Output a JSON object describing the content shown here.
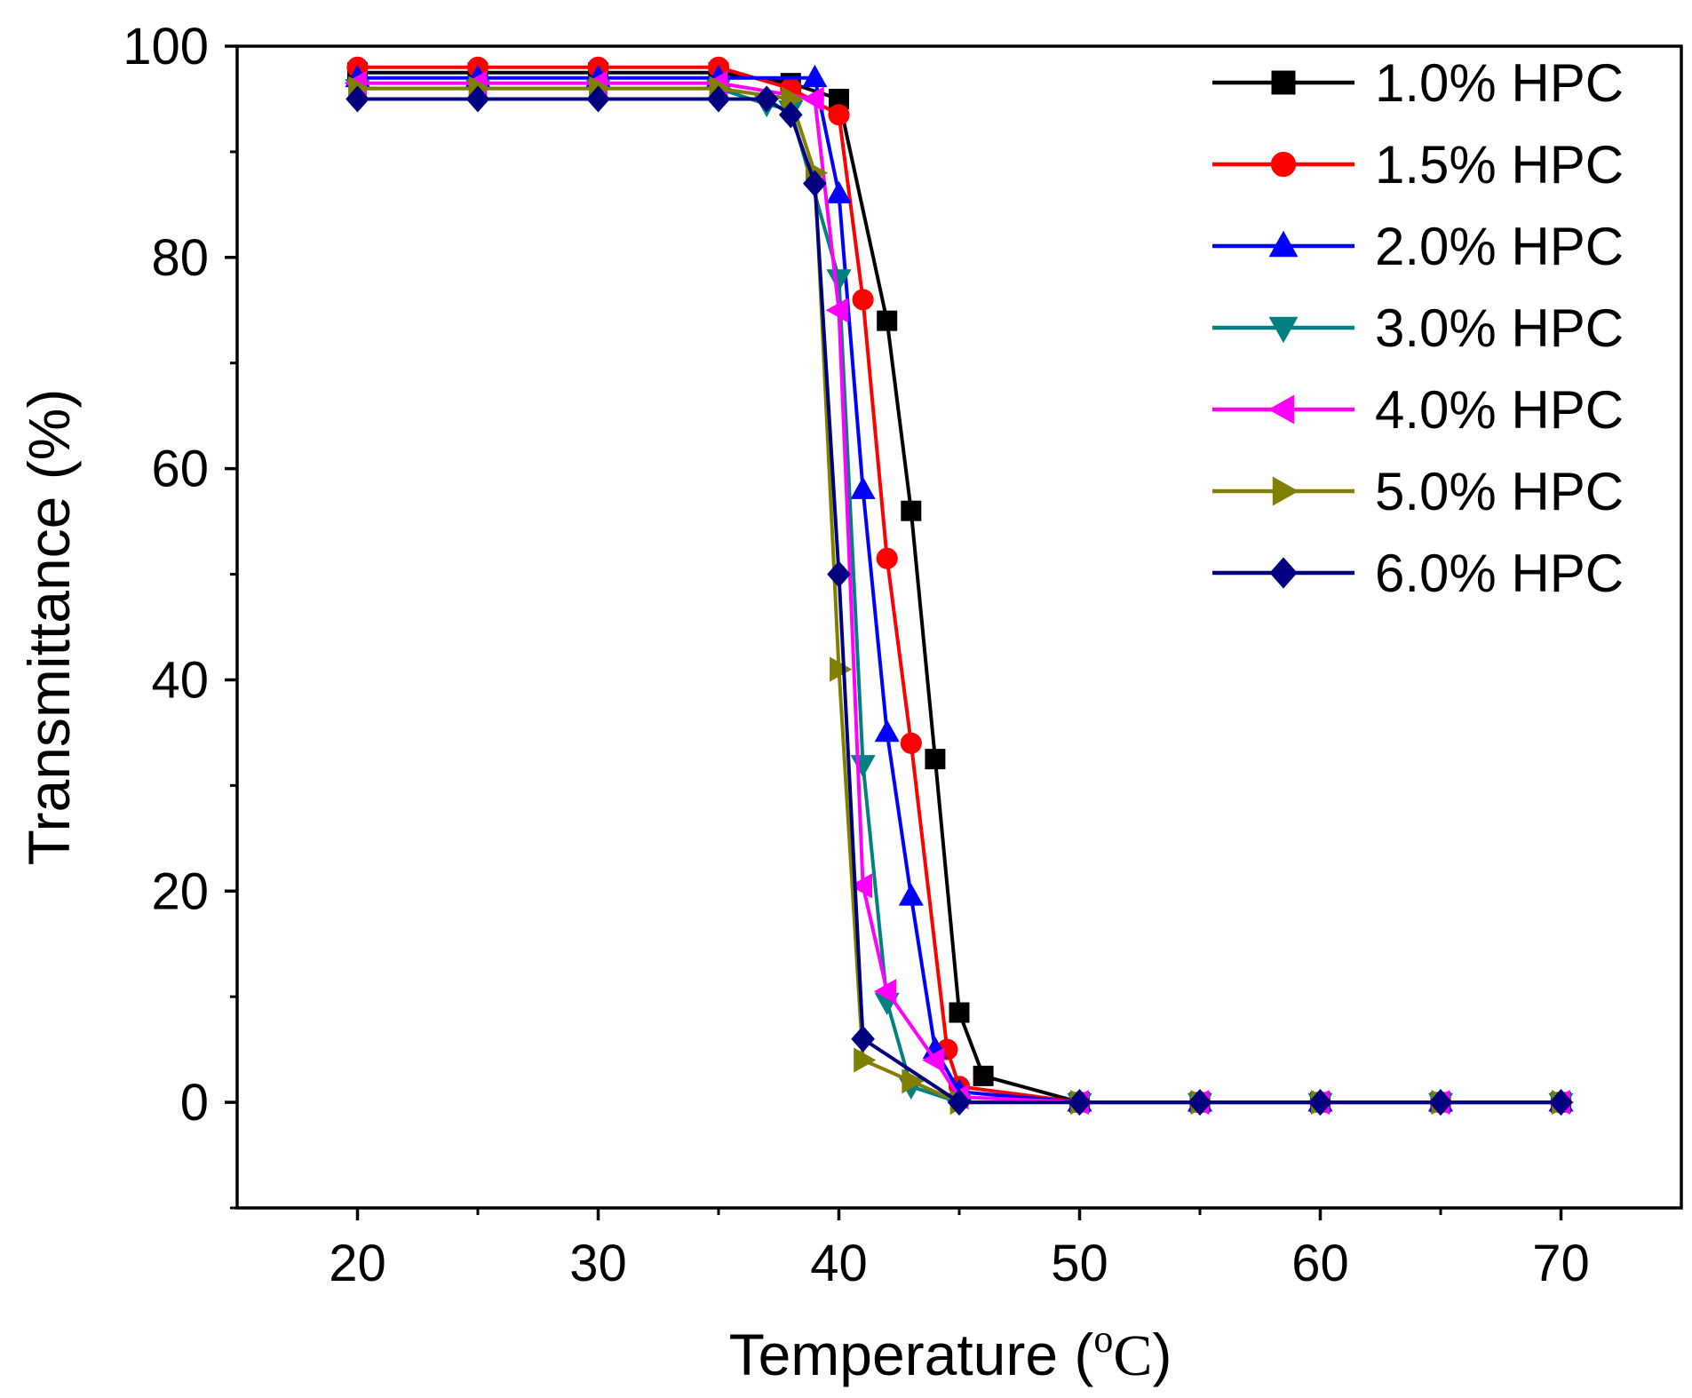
{
  "chart_data": {
    "type": "line",
    "title": "",
    "xlabel": "Temperature",
    "xlabel_unit_open": " (",
    "xlabel_unit_sup": "o",
    "xlabel_unit_main": "C",
    "xlabel_unit_close": ")",
    "ylabel": "Transmittance (%)",
    "xlim": [
      15,
      75
    ],
    "ylim": [
      -10,
      100
    ],
    "xticks": [
      20,
      30,
      40,
      50,
      60,
      70
    ],
    "xticks_minor": [
      25,
      35,
      45,
      55,
      65
    ],
    "yticks": [
      0,
      20,
      40,
      60,
      80,
      100
    ],
    "yticks_minor": [
      -10,
      10,
      30,
      50,
      70,
      90
    ],
    "legend_position": "top-right",
    "series": [
      {
        "name": "1.0% HPC",
        "color": "#000000",
        "marker": "square",
        "points": [
          [
            20,
            97.5
          ],
          [
            25,
            97.5
          ],
          [
            30,
            97.5
          ],
          [
            35,
            97.5
          ],
          [
            38,
            96.5
          ],
          [
            40,
            95
          ],
          [
            42,
            74
          ],
          [
            43,
            56
          ],
          [
            44,
            32.5
          ],
          [
            45,
            8.5
          ],
          [
            46,
            2.5
          ],
          [
            50,
            0
          ],
          [
            55,
            0
          ],
          [
            60,
            0
          ],
          [
            65,
            0
          ],
          [
            70,
            0
          ]
        ]
      },
      {
        "name": "1.5% HPC",
        "color": "#ff0000",
        "marker": "circle",
        "points": [
          [
            20,
            98
          ],
          [
            25,
            98
          ],
          [
            30,
            98
          ],
          [
            35,
            98
          ],
          [
            38,
            96
          ],
          [
            40,
            93.5
          ],
          [
            41,
            76
          ],
          [
            42,
            51.5
          ],
          [
            43,
            34
          ],
          [
            44.5,
            5
          ],
          [
            45,
            1.5
          ],
          [
            50,
            0
          ],
          [
            55,
            0
          ],
          [
            60,
            0
          ],
          [
            65,
            0
          ],
          [
            70,
            0
          ]
        ]
      },
      {
        "name": "2.0% HPC",
        "color": "#0000ff",
        "marker": "triangle-up",
        "points": [
          [
            20,
            97
          ],
          [
            25,
            97
          ],
          [
            30,
            97
          ],
          [
            35,
            97
          ],
          [
            39,
            97
          ],
          [
            40,
            86
          ],
          [
            41,
            58
          ],
          [
            42,
            35
          ],
          [
            43,
            19.5
          ],
          [
            44,
            5
          ],
          [
            45,
            1
          ],
          [
            50,
            0
          ],
          [
            55,
            0
          ],
          [
            60,
            0
          ],
          [
            65,
            0
          ],
          [
            70,
            0
          ]
        ]
      },
      {
        "name": "3.0% HPC",
        "color": "#008080",
        "marker": "triangle-down",
        "points": [
          [
            20,
            96
          ],
          [
            25,
            96
          ],
          [
            30,
            96
          ],
          [
            35,
            96
          ],
          [
            37,
            94.5
          ],
          [
            38,
            94
          ],
          [
            40,
            78
          ],
          [
            41,
            32
          ],
          [
            42,
            9.5
          ],
          [
            43,
            1.5
          ],
          [
            45,
            0
          ],
          [
            50,
            0
          ],
          [
            55,
            0
          ],
          [
            60,
            0
          ],
          [
            65,
            0
          ],
          [
            70,
            0
          ]
        ]
      },
      {
        "name": "4.0% HPC",
        "color": "#ff00ff",
        "marker": "triangle-left",
        "points": [
          [
            20,
            96.5
          ],
          [
            25,
            96.5
          ],
          [
            30,
            96.5
          ],
          [
            35,
            96.5
          ],
          [
            39,
            95
          ],
          [
            40,
            75
          ],
          [
            41,
            20.5
          ],
          [
            42,
            10.5
          ],
          [
            44,
            4
          ],
          [
            45,
            0.5
          ],
          [
            50,
            0
          ],
          [
            55,
            0
          ],
          [
            60,
            0
          ],
          [
            65,
            0
          ],
          [
            70,
            0
          ]
        ]
      },
      {
        "name": "5.0% HPC",
        "color": "#808000",
        "marker": "triangle-right",
        "points": [
          [
            20,
            96
          ],
          [
            25,
            96
          ],
          [
            30,
            96
          ],
          [
            35,
            96
          ],
          [
            38,
            95
          ],
          [
            39,
            88
          ],
          [
            40,
            41
          ],
          [
            41,
            4
          ],
          [
            43,
            2
          ],
          [
            45,
            0
          ],
          [
            50,
            0
          ],
          [
            55,
            0
          ],
          [
            60,
            0
          ],
          [
            65,
            0
          ],
          [
            70,
            0
          ]
        ]
      },
      {
        "name": "6.0% HPC",
        "color": "#000080",
        "marker": "diamond",
        "points": [
          [
            20,
            95
          ],
          [
            25,
            95
          ],
          [
            30,
            95
          ],
          [
            35,
            95
          ],
          [
            37,
            95
          ],
          [
            38,
            93.5
          ],
          [
            39,
            87
          ],
          [
            40,
            50
          ],
          [
            41,
            6
          ],
          [
            45,
            0
          ],
          [
            50,
            0
          ],
          [
            55,
            0
          ],
          [
            60,
            0
          ],
          [
            65,
            0
          ],
          [
            70,
            0
          ]
        ]
      }
    ]
  }
}
